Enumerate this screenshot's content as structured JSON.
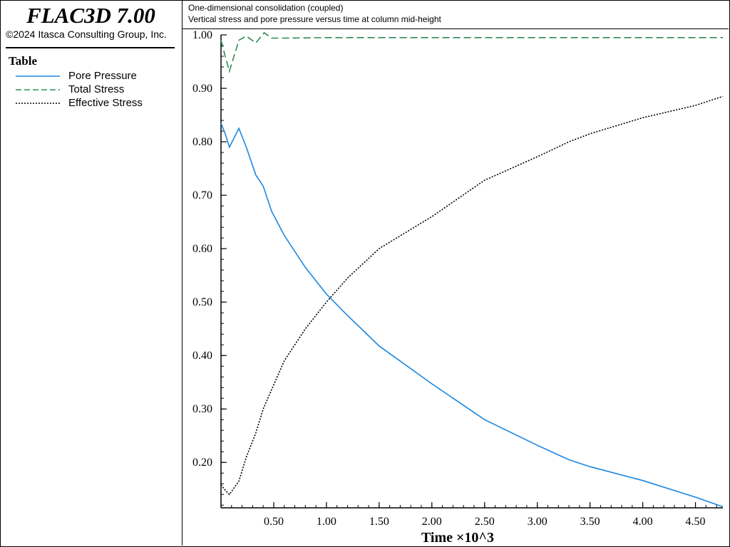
{
  "app": {
    "title": "FLAC3D 7.00",
    "copyright": "©2024 Itasca Consulting Group, Inc."
  },
  "legend": {
    "title": "Table",
    "items": [
      {
        "label": "Pore Pressure",
        "color": "#1a86e0",
        "style": "solid"
      },
      {
        "label": "Total Stress",
        "color": "#2e8b57",
        "style": "dashed"
      },
      {
        "label": "Effective Stress",
        "color": "#000000",
        "style": "dotted"
      }
    ]
  },
  "header": {
    "line1": "One-dimensional consolidation (coupled)",
    "line2": "Vertical stress and pore pressure versus time at column mid-height"
  },
  "chart_data": {
    "type": "line",
    "xlabel": "Time ×10^3",
    "ylabel": "",
    "xlim": [
      0,
      4.76
    ],
    "ylim": [
      0.115,
      1.0
    ],
    "x_ticks": [
      "0.50",
      "1.00",
      "1.50",
      "2.00",
      "2.50",
      "3.00",
      "3.50",
      "4.00",
      "4.50"
    ],
    "y_ticks": [
      "0.20",
      "0.30",
      "0.40",
      "0.50",
      "0.60",
      "0.70",
      "0.80",
      "0.90",
      "1.00"
    ],
    "grid": false,
    "legend_position": "left-panel",
    "series": [
      {
        "name": "Pore Pressure",
        "color": "#1a86e0",
        "style": "solid",
        "x": [
          0,
          0.04,
          0.08,
          0.17,
          0.24,
          0.33,
          0.4,
          0.48,
          0.6,
          0.8,
          1.0,
          1.2,
          1.5,
          2.0,
          2.5,
          3.0,
          3.3,
          3.5,
          4.0,
          4.5,
          4.76
        ],
        "y": [
          0.835,
          0.815,
          0.79,
          0.825,
          0.79,
          0.738,
          0.717,
          0.67,
          0.625,
          0.565,
          0.515,
          0.475,
          0.418,
          0.347,
          0.28,
          0.232,
          0.205,
          0.192,
          0.166,
          0.135,
          0.117
        ]
      },
      {
        "name": "Total Stress",
        "color": "#2e8b57",
        "style": "dashed",
        "x": [
          0,
          0.04,
          0.08,
          0.17,
          0.24,
          0.33,
          0.41,
          0.48,
          0.6,
          1.0,
          1.3,
          2.0,
          3.0,
          4.0,
          4.76
        ],
        "y": [
          0.99,
          0.96,
          0.932,
          0.99,
          0.998,
          0.985,
          1.004,
          0.994,
          0.994,
          0.995,
          0.995,
          0.995,
          0.995,
          0.995,
          0.995
        ]
      },
      {
        "name": "Effective Stress",
        "color": "#000000",
        "style": "dotted",
        "x": [
          0,
          0.04,
          0.08,
          0.17,
          0.24,
          0.33,
          0.4,
          0.5,
          0.6,
          0.8,
          1.0,
          1.2,
          1.5,
          2.0,
          2.5,
          3.0,
          3.3,
          3.5,
          4.0,
          4.5,
          4.76
        ],
        "y": [
          0.158,
          0.148,
          0.14,
          0.165,
          0.21,
          0.255,
          0.3,
          0.345,
          0.39,
          0.45,
          0.5,
          0.545,
          0.6,
          0.66,
          0.728,
          0.772,
          0.8,
          0.815,
          0.845,
          0.868,
          0.885
        ]
      }
    ]
  }
}
